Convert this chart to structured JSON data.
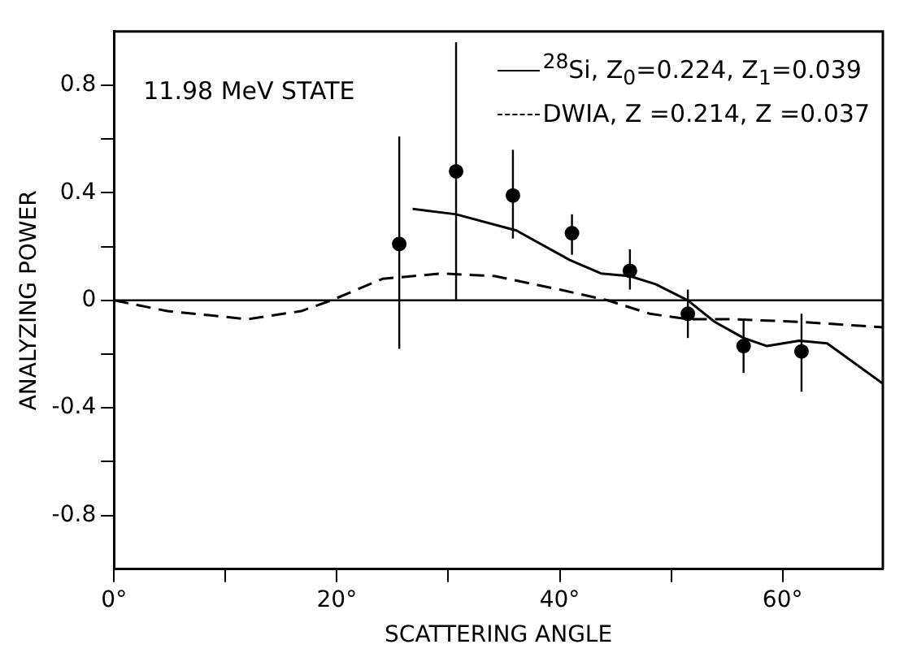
{
  "chart_data": {
    "type": "line",
    "xlabel": "SCATTERING ANGLE",
    "ylabel": "ANALYZING POWER",
    "annotations": [
      "11.98 MeV STATE"
    ],
    "xlim": [
      0,
      69
    ],
    "ylim": [
      -1.0,
      1.0
    ],
    "xticks": [
      {
        "value": 0,
        "label": "0°"
      },
      {
        "value": 10,
        "label": null
      },
      {
        "value": 20,
        "label": "20°"
      },
      {
        "value": 30,
        "label": null
      },
      {
        "value": 40,
        "label": "40°"
      },
      {
        "value": 50,
        "label": null
      },
      {
        "value": 60,
        "label": "60°"
      }
    ],
    "yticks": [
      {
        "value": -0.8,
        "label": "-0.8"
      },
      {
        "value": -0.6,
        "label": null
      },
      {
        "value": -0.4,
        "label": "-0.4"
      },
      {
        "value": -0.2,
        "label": null
      },
      0,
      {
        "value": 0.2,
        "label": null
      },
      0.4,
      {
        "value": 0.6,
        "label": null
      },
      0.8
    ],
    "grid": false,
    "legend": "top right",
    "ref_lines": [
      {
        "axis": "y",
        "value": 0,
        "color": "#000000"
      }
    ],
    "series": [
      {
        "type": "scatter",
        "color": "#000000",
        "marker": "circle",
        "x": [
          25.6,
          30.7,
          35.8,
          41.1,
          46.3,
          51.5,
          56.5,
          61.7
        ],
        "values": [
          0.21,
          0.48,
          0.39,
          0.25,
          0.11,
          -0.05,
          -0.17,
          -0.19
        ],
        "errors": [
          [
            -0.18,
            0.61
          ],
          [
            0.0,
            0.96
          ],
          [
            0.23,
            0.56
          ],
          [
            0.17,
            0.32
          ],
          [
            0.04,
            0.19
          ],
          [
            -0.14,
            0.04
          ],
          [
            -0.27,
            -0.07
          ],
          [
            -0.34,
            -0.05
          ]
        ]
      },
      {
        "name": "$^{28}$Si, Z$_{0}$=0.224, Z$_{1}$=0.039",
        "color": "#000000",
        "marker": "none",
        "line_style": "solid",
        "x": [
          26.8,
          30.7,
          36.1,
          40.9,
          43.7,
          46.3,
          48.6,
          51.5,
          53.9,
          56.5,
          58.6,
          61.5,
          64,
          69
        ],
        "values": [
          0.34,
          0.32,
          0.26,
          0.15,
          0.1,
          0.09,
          0.06,
          0.0,
          -0.08,
          -0.14,
          -0.17,
          -0.15,
          -0.16,
          -0.31
        ]
      },
      {
        "name": "DWIA, Z =0.214, Z =0.037",
        "color": "#000000",
        "marker": "none",
        "line_style": "dashed",
        "x": [
          0,
          4.8,
          12,
          16.8,
          19.5,
          24.1,
          29.4,
          34.2,
          40,
          44.3,
          48.1,
          51.5,
          55.3,
          61.5,
          69
        ],
        "values": [
          0.0,
          -0.04,
          -0.07,
          -0.04,
          0.0,
          0.08,
          0.1,
          0.09,
          0.04,
          0.0,
          -0.05,
          -0.07,
          -0.07,
          -0.08,
          -0.1
        ]
      }
    ]
  }
}
